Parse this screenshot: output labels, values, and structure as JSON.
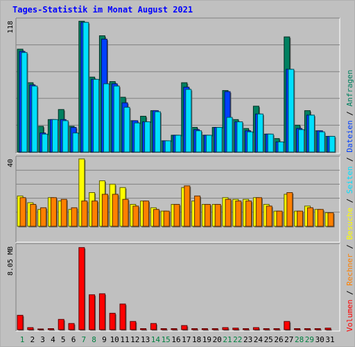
{
  "page": {
    "title": "Tages-Statistik im Monat August 2021"
  },
  "colors": {
    "background": "#c0c0c0",
    "plot": "#c0c0c0",
    "gridline": "#808080",
    "title": "#0000ff",
    "anfragen": "#008060",
    "dateien": "#0040ff",
    "seiten": "#00e0ff",
    "besuche": "#ffff00",
    "rechner": "#ff8000",
    "volumen": "#ff0000",
    "weekend_label": "#008040",
    "weekday_label": "#000000"
  },
  "chart_data": [
    {
      "type": "bar",
      "panel": "requests",
      "ytick": "118",
      "ylim": [
        0,
        118
      ],
      "categories": [
        "1",
        "2",
        "3",
        "4",
        "5",
        "6",
        "7",
        "8",
        "9",
        "10",
        "11",
        "12",
        "13",
        "14",
        "15",
        "16",
        "17",
        "18",
        "19",
        "20",
        "21",
        "22",
        "23",
        "24",
        "25",
        "26",
        "27",
        "28",
        "29",
        "30",
        "31"
      ],
      "series": [
        {
          "name": "Anfragen",
          "color_key": "anfragen",
          "values": [
            92,
            62,
            23,
            29,
            38,
            23,
            117,
            67,
            104,
            63,
            49,
            28,
            32,
            37,
            10,
            15,
            62,
            22,
            15,
            22,
            55,
            29,
            21,
            41,
            16,
            12,
            103,
            24,
            37,
            19,
            14
          ]
        },
        {
          "name": "Dateien",
          "color_key": "dateien",
          "values": [
            90,
            60,
            17,
            29,
            29,
            22,
            116,
            65,
            101,
            61,
            44,
            28,
            27,
            37,
            10,
            15,
            58,
            20,
            15,
            22,
            54,
            27,
            19,
            34,
            16,
            9,
            74,
            21,
            33,
            19,
            14
          ]
        },
        {
          "name": "Seiten",
          "color_key": "seiten",
          "values": [
            89,
            59,
            16,
            29,
            28,
            17,
            116,
            65,
            61,
            59,
            40,
            26,
            27,
            36,
            10,
            15,
            56,
            19,
            15,
            22,
            31,
            27,
            18,
            34,
            16,
            9,
            74,
            20,
            33,
            18,
            14
          ]
        }
      ]
    },
    {
      "type": "bar",
      "panel": "visits",
      "ytick": "40",
      "ylim": [
        0,
        40
      ],
      "categories": [
        "1",
        "2",
        "3",
        "4",
        "5",
        "6",
        "7",
        "8",
        "9",
        "10",
        "11",
        "12",
        "13",
        "14",
        "15",
        "16",
        "17",
        "18",
        "19",
        "20",
        "21",
        "22",
        "23",
        "24",
        "25",
        "26",
        "27",
        "28",
        "29",
        "30",
        "31"
      ],
      "series": [
        {
          "name": "Besuche",
          "color_key": "besuche",
          "values": [
            18,
            14,
            10,
            17,
            15,
            10,
            40,
            20,
            27,
            25,
            23,
            13,
            15,
            11,
            9,
            13,
            23,
            15,
            13,
            13,
            17,
            16,
            16,
            17,
            13,
            9,
            19,
            9,
            12,
            10,
            8
          ]
        },
        {
          "name": "Rechner",
          "color_key": "rechner",
          "values": [
            17,
            13,
            11,
            17,
            16,
            11,
            15,
            15,
            19,
            19,
            16,
            12,
            15,
            10,
            9,
            13,
            24,
            18,
            13,
            13,
            16,
            15,
            15,
            17,
            12,
            9,
            20,
            9,
            11,
            10,
            8
          ]
        }
      ]
    },
    {
      "type": "bar",
      "panel": "volume",
      "ytick": "8.05 MB",
      "ylim": [
        0,
        8.05
      ],
      "categories": [
        "1",
        "2",
        "3",
        "4",
        "5",
        "6",
        "7",
        "8",
        "9",
        "10",
        "11",
        "12",
        "13",
        "14",
        "15",
        "16",
        "17",
        "18",
        "19",
        "20",
        "21",
        "22",
        "23",
        "24",
        "25",
        "26",
        "27",
        "28",
        "29",
        "30",
        "31"
      ],
      "series": [
        {
          "name": "Volumen",
          "color_key": "volumen",
          "values": [
            1.4,
            0.2,
            0.05,
            0.1,
            1.0,
            0.6,
            8.0,
            3.4,
            3.5,
            1.6,
            2.5,
            0.8,
            0.1,
            0.6,
            0.1,
            0.1,
            0.4,
            0.1,
            0.1,
            0.1,
            0.2,
            0.15,
            0.1,
            0.2,
            0.1,
            0.1,
            0.8,
            0.1,
            0.1,
            0.1,
            0.15
          ]
        }
      ]
    }
  ],
  "weekend_days": [
    1,
    7,
    8,
    14,
    15,
    21,
    22,
    28,
    29
  ],
  "legend": [
    {
      "label": "Volumen",
      "color_key": "volumen"
    },
    {
      "label": "/",
      "color_key": "weekday_label"
    },
    {
      "label": "Rechner",
      "color_key": "rechner"
    },
    {
      "label": "/",
      "color_key": "weekday_label"
    },
    {
      "label": "Besuche",
      "color_key": "besuche"
    },
    {
      "label": "/",
      "color_key": "weekday_label"
    },
    {
      "label": "Seiten",
      "color_key": "seiten"
    },
    {
      "label": "/",
      "color_key": "weekday_label"
    },
    {
      "label": "Dateien",
      "color_key": "dateien"
    },
    {
      "label": "/",
      "color_key": "weekday_label"
    },
    {
      "label": "Anfragen",
      "color_key": "anfragen"
    }
  ]
}
